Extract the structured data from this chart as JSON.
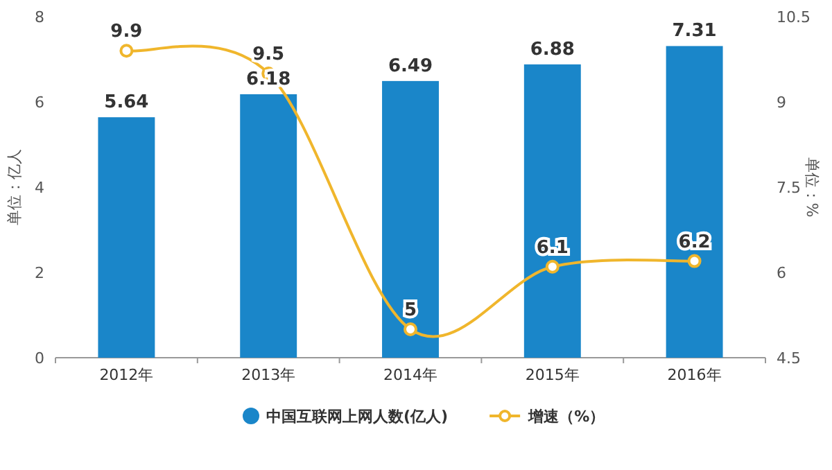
{
  "chart_data": {
    "type": "bar",
    "categories": [
      "2012年",
      "2013年",
      "2014年",
      "2015年",
      "2016年"
    ],
    "ylabel": "单位：亿人",
    "y2label": "单位：%",
    "ylim": [
      0,
      8
    ],
    "yticks": [
      0,
      2,
      4,
      6,
      8
    ],
    "y2lim": [
      4.5,
      10.5
    ],
    "y2ticks": [
      4.5,
      6,
      7.5,
      9,
      10.5
    ],
    "series": [
      {
        "name": "中国互联网上网人数(亿人)",
        "color": "#1a86c9",
        "values": [
          5.64,
          6.18,
          6.49,
          6.88,
          7.31
        ]
      },
      {
        "name": "增速（%）",
        "type": "line",
        "axis": "y2",
        "color": "#f0b62c",
        "values": [
          9.9,
          9.5,
          5,
          6.1,
          6.2
        ]
      }
    ],
    "data_labels": true,
    "legend": "bottom",
    "marker": "circle"
  }
}
